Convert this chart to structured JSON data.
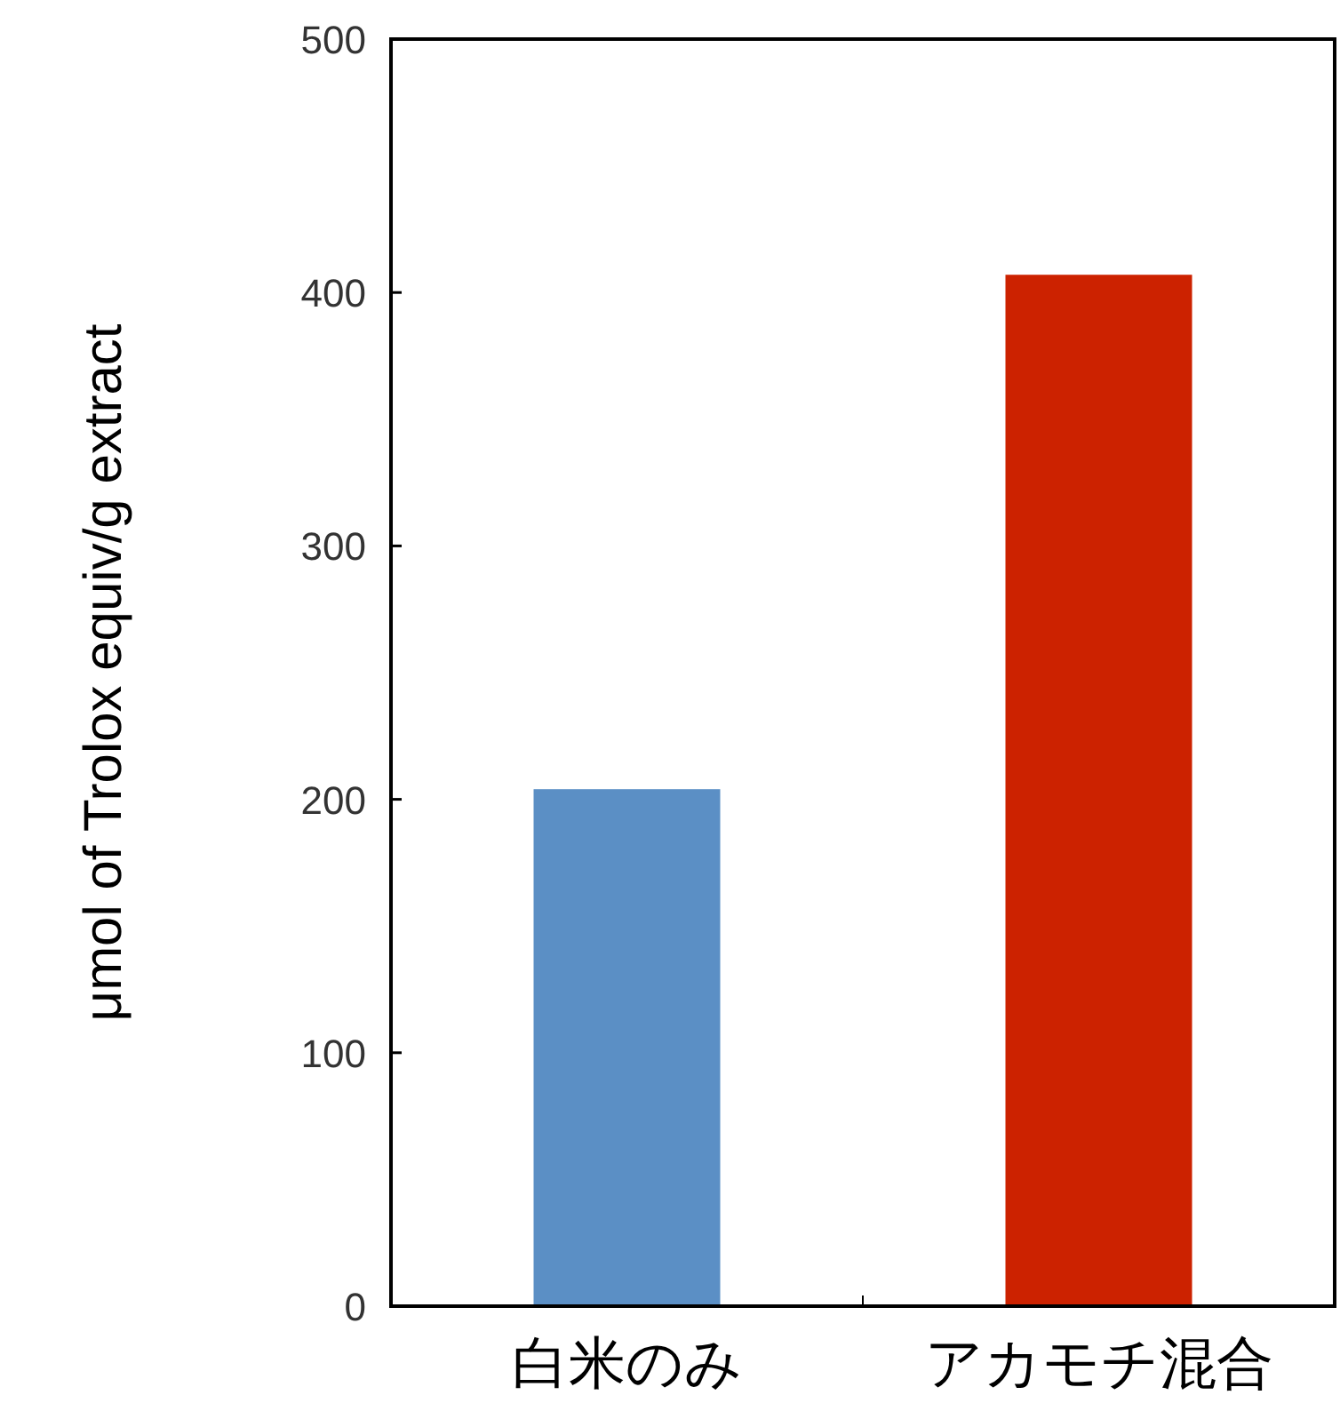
{
  "chart_data": {
    "type": "bar",
    "ylabel": "μmol of Trolox equiv/g extract",
    "categories": [
      "白米のみ",
      "アカモチ混合"
    ],
    "values": [
      204,
      407
    ],
    "colors": [
      "#5b8fc5",
      "#cc2200"
    ],
    "ylim": [
      0,
      500
    ],
    "yticks": [
      0,
      100,
      200,
      300,
      400,
      500
    ],
    "grid": false
  }
}
